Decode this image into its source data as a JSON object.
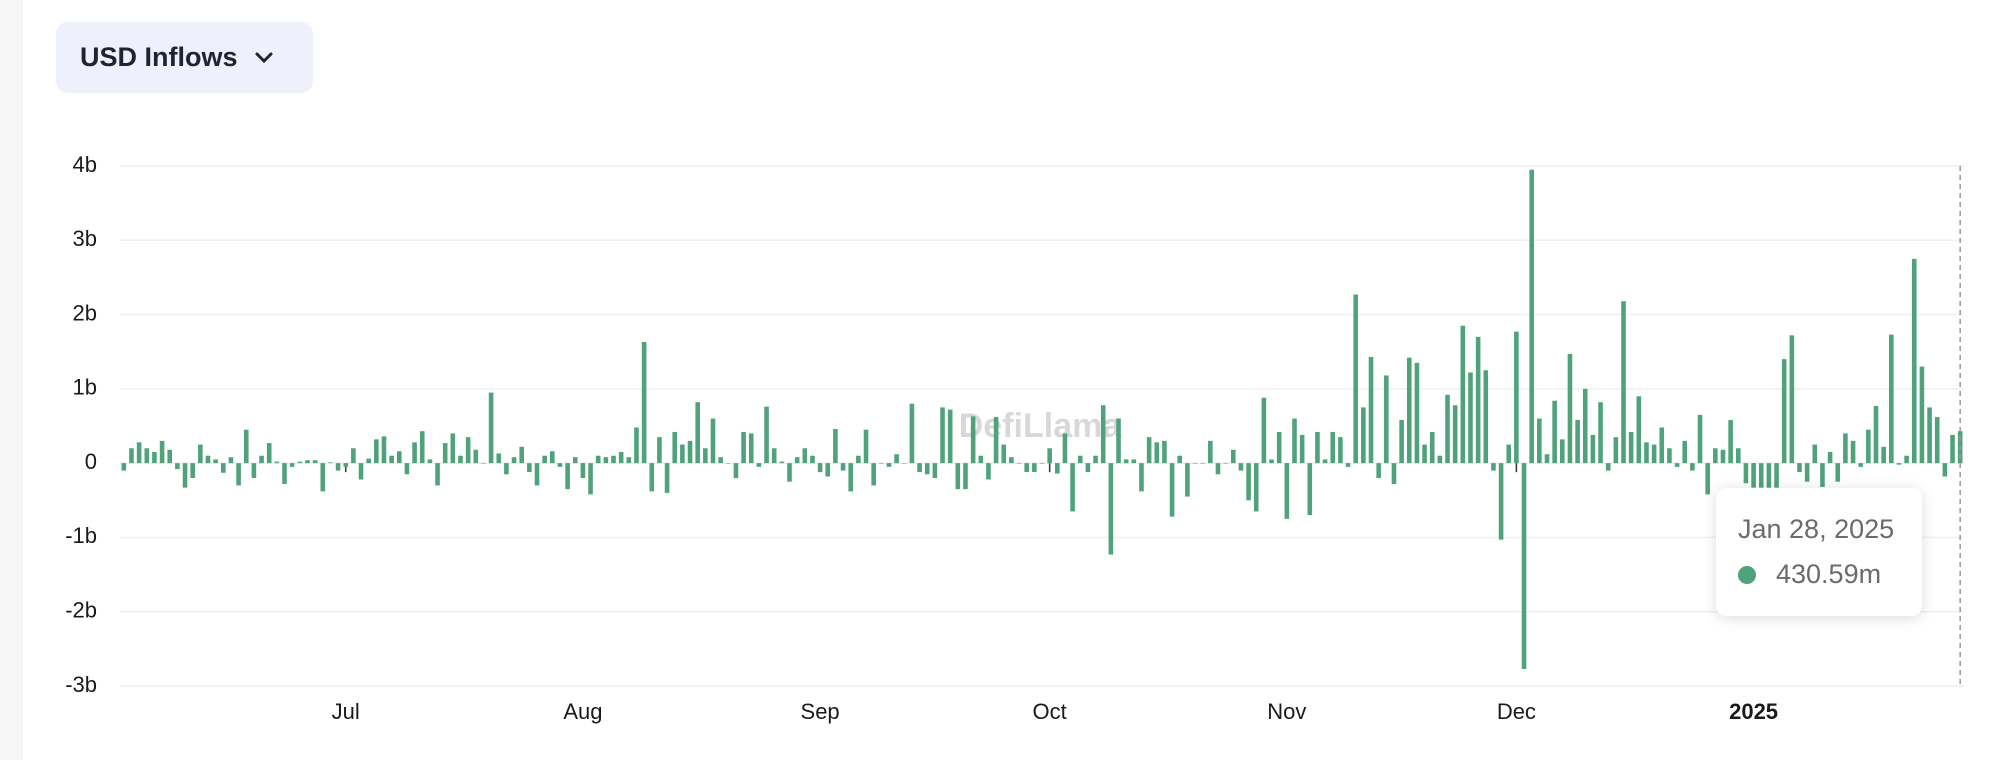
{
  "chart_data": {
    "type": "bar",
    "selector": "USD Inflows",
    "watermark": "DefiLlama",
    "color": "#4fa27a",
    "ylim": [
      -3,
      4
    ],
    "yticks": [
      {
        "value": -3,
        "label": "-3b"
      },
      {
        "value": -2,
        "label": "-2b"
      },
      {
        "value": -1,
        "label": "-1b"
      },
      0,
      {
        "value": 1,
        "label": "1b"
      },
      {
        "value": 2,
        "label": "2b"
      },
      {
        "value": 3,
        "label": "3b"
      },
      {
        "value": 4,
        "label": "4b"
      }
    ],
    "grid": true,
    "categories": [
      null,
      null,
      null,
      null,
      null,
      null,
      null,
      null,
      null,
      null,
      null,
      null,
      null,
      null,
      null,
      null,
      null,
      null,
      null,
      null,
      null,
      null,
      null,
      null,
      null,
      null,
      null,
      null,
      null,
      "Jul",
      null,
      null,
      null,
      null,
      null,
      null,
      null,
      null,
      null,
      null,
      null,
      null,
      null,
      null,
      null,
      null,
      null,
      null,
      null,
      null,
      null,
      null,
      null,
      null,
      null,
      null,
      null,
      null,
      null,
      null,
      "Aug",
      null,
      null,
      null,
      null,
      null,
      null,
      null,
      null,
      null,
      null,
      null,
      null,
      null,
      null,
      null,
      null,
      null,
      null,
      null,
      null,
      null,
      null,
      null,
      null,
      null,
      null,
      null,
      null,
      null,
      null,
      "Sep",
      null,
      null,
      null,
      null,
      null,
      null,
      null,
      null,
      null,
      null,
      null,
      null,
      null,
      null,
      null,
      null,
      null,
      null,
      null,
      null,
      null,
      null,
      null,
      null,
      null,
      null,
      null,
      null,
      null,
      "Oct",
      null,
      null,
      null,
      null,
      null,
      null,
      null,
      null,
      null,
      null,
      null,
      null,
      null,
      null,
      null,
      null,
      null,
      null,
      null,
      null,
      null,
      null,
      null,
      null,
      null,
      null,
      null,
      null,
      null,
      null,
      "Nov",
      null,
      null,
      null,
      null,
      null,
      null,
      null,
      null,
      null,
      null,
      null,
      null,
      null,
      null,
      null,
      null,
      null,
      null,
      null,
      null,
      null,
      null,
      null,
      null,
      null,
      null,
      null,
      null,
      null,
      "Dec",
      null,
      null,
      null,
      null,
      null,
      null,
      null,
      null,
      null,
      null,
      null,
      null,
      null,
      null,
      null,
      null,
      null,
      null,
      null,
      null,
      null,
      null,
      null,
      null,
      null,
      null,
      null,
      null,
      null,
      null,
      "2025",
      null,
      null,
      null,
      null,
      null,
      null,
      null,
      null,
      null,
      null,
      null,
      null,
      null,
      null,
      null,
      null,
      null,
      null,
      null,
      null,
      null,
      null,
      null,
      null,
      null,
      null,
      null
    ],
    "values": [
      -0.1,
      0.2,
      0.28,
      0.2,
      0.15,
      0.3,
      0.18,
      -0.08,
      -0.33,
      -0.2,
      0.25,
      0.1,
      0.05,
      -0.13,
      0.08,
      -0.3,
      0.45,
      -0.2,
      0.1,
      0.27,
      0.02,
      -0.28,
      -0.05,
      0.02,
      0.04,
      0.04,
      -0.38,
      0.01,
      -0.1,
      -0.05,
      0.2,
      -0.22,
      0.06,
      0.32,
      0.36,
      0.1,
      0.16,
      -0.15,
      0.28,
      0.43,
      0.05,
      -0.3,
      0.27,
      0.4,
      0.1,
      0.35,
      0.18,
      0.0,
      0.95,
      0.13,
      -0.15,
      0.08,
      0.22,
      -0.12,
      -0.3,
      0.1,
      0.16,
      -0.05,
      -0.35,
      0.08,
      -0.2,
      -0.42,
      0.1,
      0.08,
      0.1,
      0.15,
      0.08,
      0.48,
      1.63,
      -0.38,
      0.35,
      -0.4,
      0.42,
      0.25,
      0.3,
      0.82,
      0.2,
      0.6,
      0.08,
      0.0,
      -0.2,
      0.42,
      0.4,
      -0.05,
      0.76,
      0.2,
      0.02,
      -0.25,
      0.08,
      0.2,
      0.1,
      -0.12,
      -0.18,
      0.46,
      -0.1,
      -0.38,
      0.1,
      0.45,
      -0.3,
      0.0,
      -0.05,
      0.12,
      0.0,
      0.8,
      -0.12,
      -0.15,
      -0.2,
      0.75,
      0.72,
      -0.35,
      -0.35,
      0.63,
      0.1,
      -0.22,
      0.62,
      0.25,
      0.08,
      0.0,
      -0.12,
      -0.12,
      0.0,
      0.2,
      -0.14,
      0.4,
      -0.65,
      0.1,
      -0.12,
      0.1,
      0.78,
      -1.23,
      0.6,
      0.05,
      0.05,
      -0.38,
      0.35,
      0.28,
      0.3,
      -0.72,
      0.1,
      -0.45,
      0.0,
      0.0,
      0.3,
      -0.15,
      0.0,
      0.18,
      -0.1,
      -0.5,
      -0.65,
      0.88,
      0.05,
      0.42,
      -0.75,
      0.6,
      0.38,
      -0.7,
      0.42,
      0.05,
      0.42,
      0.35,
      -0.05,
      2.27,
      0.75,
      1.43,
      -0.2,
      1.18,
      -0.28,
      0.58,
      1.42,
      1.35,
      0.25,
      0.42,
      0.1,
      0.92,
      0.78,
      1.85,
      1.22,
      1.7,
      1.25,
      -0.1,
      -1.03,
      0.25,
      1.77,
      -2.77,
      3.95,
      0.6,
      0.12,
      0.84,
      0.32,
      1.47,
      0.58,
      1.0,
      0.38,
      0.82,
      -0.1,
      0.35,
      2.18,
      0.42,
      0.9,
      0.28,
      0.25,
      0.48,
      0.2,
      -0.05,
      0.3,
      -0.1,
      0.65,
      -0.42,
      0.2,
      0.18,
      0.58,
      0.2,
      -0.27,
      -0.33,
      -0.33,
      -0.33,
      -0.33,
      1.4,
      1.72,
      -0.12,
      -0.25,
      0.25,
      -0.32,
      0.15,
      -0.25,
      0.4,
      0.3,
      -0.05,
      0.45,
      0.77,
      0.22,
      1.73,
      -0.02,
      0.1,
      2.75,
      1.3,
      0.75,
      0.62,
      -0.18,
      0.38,
      0.43059
    ],
    "tooltip": {
      "title": "Jan 28, 2025",
      "value": 0.43059,
      "label": "430.59m"
    }
  }
}
